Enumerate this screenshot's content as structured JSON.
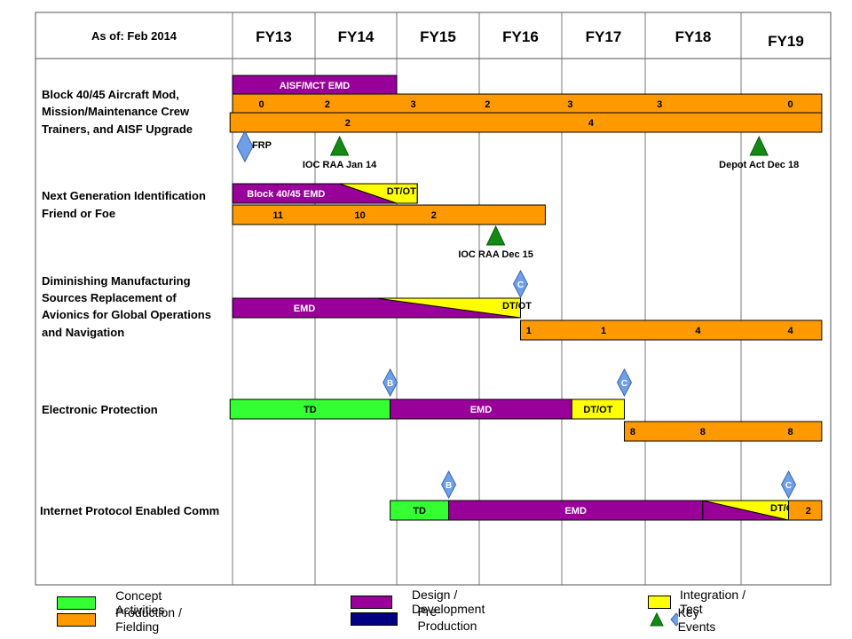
{
  "chart_data": {
    "type": "gantt",
    "as_of": "As of: Feb 2014",
    "fiscal_years": [
      "FY13",
      "FY14",
      "FY15",
      "FY16",
      "FY17",
      "FY18",
      "FY19"
    ],
    "programs": [
      {
        "name": "Block 40/45 Aircraft Mod, Mission/Maintenance Crew Trainers, and AISF Upgrade",
        "name_lines": [
          "Block 40/45 Aircraft Mod,",
          "Mission/Maintenance Crew",
          "Trainers, and AISF Upgrade"
        ],
        "bars": [
          {
            "kind": "design",
            "label": "AISF/MCT EMD",
            "start": 2013.0,
            "end": 2015.0
          },
          {
            "kind": "production",
            "start": 2013.0,
            "end": 2019.9,
            "quantities": [
              {
                "at": 2013.35,
                "value": "0"
              },
              {
                "at": 2014.15,
                "value": "2"
              },
              {
                "at": 2015.2,
                "value": "3"
              },
              {
                "at": 2016.1,
                "value": "2"
              },
              {
                "at": 2017.1,
                "value": "3"
              },
              {
                "at": 2018.15,
                "value": "3"
              },
              {
                "at": 2019.55,
                "value": "0"
              }
            ]
          },
          {
            "kind": "production",
            "start": 2012.97,
            "end": 2019.9,
            "quantities": [
              {
                "at": 2014.4,
                "value": "2"
              },
              {
                "at": 2017.35,
                "value": "4"
              }
            ]
          }
        ],
        "events": [
          {
            "kind": "diamond",
            "label": "FRP",
            "at": 2013.15
          },
          {
            "kind": "triangle",
            "label": "IOC RAA Jan 14",
            "at": 2014.3
          },
          {
            "kind": "triangle",
            "label": "Depot Act Dec 18",
            "at": 2019.2
          }
        ]
      },
      {
        "name": "Next Generation Identification Friend or Foe",
        "name_lines": [
          "Next Generation Identification",
          "Friend or Foe"
        ],
        "bars": [
          {
            "kind": "design-integration",
            "label_design": "Block 40/45 EMD",
            "label_integration": "DT/OT",
            "start": 2013.0,
            "end": 2015.25,
            "split_start": 2014.3,
            "split_end": 2015.0
          },
          {
            "kind": "production",
            "start": 2013.0,
            "end": 2016.8,
            "quantities": [
              {
                "at": 2013.55,
                "value": "11"
              },
              {
                "at": 2014.55,
                "value": "10"
              },
              {
                "at": 2015.45,
                "value": "2"
              }
            ]
          }
        ],
        "events": [
          {
            "kind": "triangle",
            "label": "IOC RAA Dec 15",
            "at": 2016.2
          }
        ]
      },
      {
        "name": "Diminishing Manufacturing Sources Replacement of Avionics for Global Operations and Navigation",
        "name_lines": [
          "Diminishing Manufacturing",
          "Sources Replacement of",
          "Avionics for Global Operations",
          "and Navigation"
        ],
        "bars": [
          {
            "kind": "design-integration",
            "label_design": "EMD",
            "label_integration": "DT/OT",
            "start": 2013.0,
            "end": 2016.5,
            "split_start": 2014.75,
            "split_end": 2016.5
          },
          {
            "kind": "production",
            "start": 2016.5,
            "end": 2019.9,
            "quantities": [
              {
                "at": 2016.6,
                "value": "1"
              },
              {
                "at": 2017.5,
                "value": "1"
              },
              {
                "at": 2018.55,
                "value": "4"
              },
              {
                "at": 2019.55,
                "value": "4"
              }
            ]
          }
        ],
        "events": [
          {
            "kind": "diamond",
            "label": "C",
            "at": 2016.5
          }
        ]
      },
      {
        "name": "Electronic Protection",
        "name_lines": [
          "Electronic Protection"
        ],
        "bars": [
          {
            "kind": "concept",
            "label": "TD",
            "start": 2012.97,
            "end": 2014.92
          },
          {
            "kind": "design",
            "label": "EMD",
            "start": 2014.92,
            "end": 2017.12
          },
          {
            "kind": "integration",
            "label": "DT/OT",
            "start": 2017.12,
            "end": 2017.75
          },
          {
            "kind": "production",
            "start": 2017.75,
            "end": 2019.9,
            "quantities": [
              {
                "at": 2017.85,
                "value": "8"
              },
              {
                "at": 2018.6,
                "value": "8"
              },
              {
                "at": 2019.55,
                "value": "8"
              }
            ]
          }
        ],
        "events": [
          {
            "kind": "diamond",
            "label": "B",
            "at": 2014.92
          },
          {
            "kind": "diamond",
            "label": "C",
            "at": 2017.75
          }
        ]
      },
      {
        "name": "Internet Protocol Enabled Comm",
        "name_lines": [
          "Internet Protocol Enabled Comm"
        ],
        "bars": [
          {
            "kind": "concept",
            "label": "TD",
            "start": 2014.92,
            "end": 2015.63
          },
          {
            "kind": "design",
            "label": "EMD",
            "start": 2015.63,
            "end": 2018.6
          },
          {
            "kind": "design-integration",
            "label_design": "",
            "label_integration": "DT/OT",
            "start": 2018.6,
            "end": 2019.53,
            "split_start": 2018.6,
            "split_end": 2019.53
          },
          {
            "kind": "production",
            "start": 2019.53,
            "end": 2019.9,
            "quantities": [
              {
                "at": 2019.75,
                "value": "2"
              }
            ]
          }
        ],
        "events": [
          {
            "kind": "diamond",
            "label": "B",
            "at": 2015.63
          },
          {
            "kind": "diamond",
            "label": "C",
            "at": 2019.53
          }
        ]
      }
    ]
  },
  "legend": {
    "concept": "Concept Activities",
    "production": "Production  / Fielding",
    "design": "Design / Development",
    "preproduction": "Pre-Production",
    "integration": "Integration / Test",
    "key_events": "Key Events"
  },
  "colors": {
    "concept": "#33ff33",
    "production": "#ff9900",
    "design": "#990099",
    "preproduction": "#000080",
    "integration": "#ffff00",
    "triangle": "#138a13",
    "diamond": "#6f9fe6"
  }
}
